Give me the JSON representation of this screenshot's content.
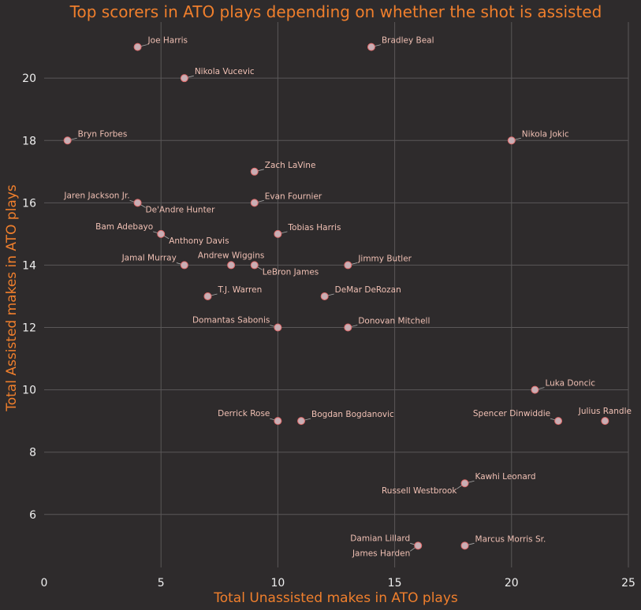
{
  "chart_data": {
    "type": "scatter",
    "title": "Top scorers in ATO plays depending on whether the shot is assisted",
    "xlabel": "Total Unassisted makes in ATO plays",
    "ylabel": "Total Assisted makes in ATO plays",
    "xlim": [
      0,
      25
    ],
    "ylim": [
      4.3,
      21.8
    ],
    "xticks": [
      0,
      5,
      10,
      15,
      20,
      25
    ],
    "yticks": [
      6,
      8,
      10,
      12,
      14,
      16,
      18,
      20
    ],
    "grid": true,
    "colors": {
      "background": "#2e2b2c",
      "accent": "#f07f2c",
      "point_fill": "#c8aeb4",
      "point_edge": "#e06a6a",
      "label": "#f0c0b4"
    },
    "points": [
      {
        "name": "Joe Harris",
        "x": 4,
        "y": 21,
        "pos": "ur"
      },
      {
        "name": "Bradley Beal",
        "x": 14,
        "y": 21,
        "pos": "ur"
      },
      {
        "name": "Nikola Vucevic",
        "x": 6,
        "y": 20,
        "pos": "ur"
      },
      {
        "name": "Bryn Forbes",
        "x": 1,
        "y": 18,
        "pos": "ur"
      },
      {
        "name": "Nikola Jokic",
        "x": 20,
        "y": 18,
        "pos": "ur"
      },
      {
        "name": "Zach LaVine",
        "x": 9,
        "y": 17,
        "pos": "ur"
      },
      {
        "name": "Jaren Jackson Jr.",
        "x": 4,
        "y": 16,
        "pos": "ul"
      },
      {
        "name": "De'Andre Hunter",
        "x": 4,
        "y": 16,
        "pos": "dr"
      },
      {
        "name": "Evan Fournier",
        "x": 9,
        "y": 16,
        "pos": "ur"
      },
      {
        "name": "Bam Adebayo",
        "x": 5,
        "y": 15,
        "pos": "ul"
      },
      {
        "name": "Anthony Davis",
        "x": 5,
        "y": 15,
        "pos": "dr"
      },
      {
        "name": "Tobias Harris",
        "x": 10,
        "y": 15,
        "pos": "ur"
      },
      {
        "name": "Jamal Murray",
        "x": 6,
        "y": 14,
        "pos": "ul"
      },
      {
        "name": "Andrew Wiggins",
        "x": 8,
        "y": 14,
        "pos": "u"
      },
      {
        "name": "LeBron James",
        "x": 9,
        "y": 14,
        "pos": "dr"
      },
      {
        "name": "Jimmy Butler",
        "x": 13,
        "y": 14,
        "pos": "ur"
      },
      {
        "name": "T.J. Warren",
        "x": 7,
        "y": 13,
        "pos": "ur"
      },
      {
        "name": "DeMar DeRozan",
        "x": 12,
        "y": 13,
        "pos": "ur"
      },
      {
        "name": "Domantas Sabonis",
        "x": 10,
        "y": 12,
        "pos": "ul"
      },
      {
        "name": "Donovan Mitchell",
        "x": 13,
        "y": 12,
        "pos": "ur"
      },
      {
        "name": "Luka Doncic",
        "x": 21,
        "y": 10,
        "pos": "ur"
      },
      {
        "name": "Derrick Rose",
        "x": 10,
        "y": 9,
        "pos": "ul"
      },
      {
        "name": "Bogdan Bogdanovic",
        "x": 11,
        "y": 9,
        "pos": "ur"
      },
      {
        "name": "Spencer Dinwiddie",
        "x": 22,
        "y": 9,
        "pos": "ul"
      },
      {
        "name": "Julius Randle",
        "x": 24,
        "y": 9,
        "pos": "u"
      },
      {
        "name": "Kawhi Leonard",
        "x": 18,
        "y": 7,
        "pos": "ur"
      },
      {
        "name": "Russell Westbrook",
        "x": 18,
        "y": 7,
        "pos": "dl"
      },
      {
        "name": "Damian Lillard",
        "x": 16,
        "y": 5,
        "pos": "ul"
      },
      {
        "name": "James Harden",
        "x": 16,
        "y": 5,
        "pos": "dl"
      },
      {
        "name": "Marcus Morris Sr.",
        "x": 18,
        "y": 5,
        "pos": "ur"
      }
    ]
  }
}
